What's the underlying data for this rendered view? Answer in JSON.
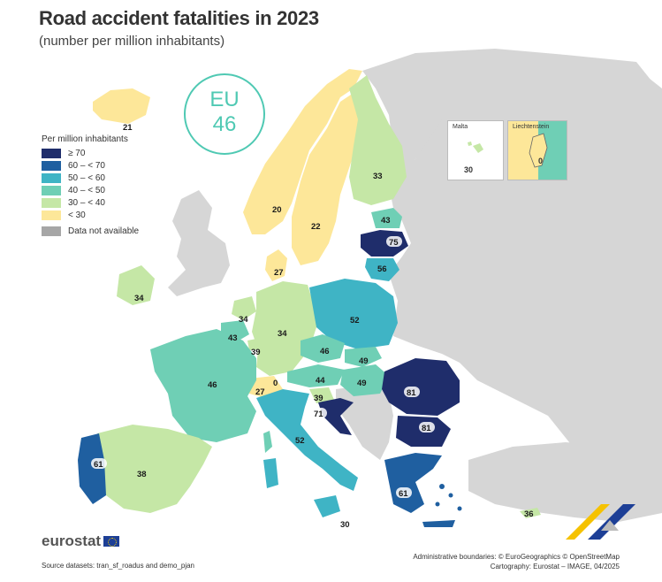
{
  "title": "Road accident fatalities in 2023",
  "subtitle": "(number per million inhabitants)",
  "eu": {
    "label": "EU",
    "value": "46"
  },
  "legend": {
    "title": "Per million inhabitants",
    "classes": [
      {
        "label": "≥ 70",
        "color": "#1f2d6b"
      },
      {
        "label": "60 – < 70",
        "color": "#1f5fa0"
      },
      {
        "label": "50 – < 60",
        "color": "#3fb4c5"
      },
      {
        "label": "40 – < 50",
        "color": "#6fcfb5"
      },
      {
        "label": "30 – < 40",
        "color": "#c5e7a6"
      },
      {
        "label": "< 30",
        "color": "#fde799"
      }
    ],
    "na": {
      "label": "Data not available",
      "color": "#a6a6a6"
    }
  },
  "map_data": {
    "values": {
      "Iceland": "21",
      "Norway": "20",
      "Sweden": "22",
      "Finland": "33",
      "Estonia": "43",
      "Latvia": "75",
      "Lithuania": "56",
      "Denmark": "27",
      "Ireland": "34",
      "Netherlands": "34",
      "Belgium": "43",
      "Luxembourg": "39",
      "Germany": "34",
      "Poland": "52",
      "Czechia": "46",
      "Slovakia": "49",
      "Austria": "44",
      "Hungary": "49",
      "Slovenia": "39",
      "Croatia": "71",
      "Switzerland": "27",
      "Liechtenstein": "0",
      "France": "46",
      "Italy": "52",
      "Spain": "38",
      "Portugal": "61",
      "Romania": "81",
      "Bulgaria": "81",
      "Greece": "61",
      "Cyprus": "36",
      "Malta": "30",
      "Malta island": "30"
    }
  },
  "insets": {
    "malta": "Malta",
    "malta_value": "30",
    "liechtenstein": "Liechtenstein",
    "liechtenstein_value": "0"
  },
  "footer": {
    "logo": "eurostat",
    "source": "Source datasets: tran_sf_roadus and demo_pjan",
    "credit1": "Administrative boundaries: © EuroGeographics © OpenStreetMap",
    "credit2": "Cartography: Eurostat – IMAGE, 04/2025"
  }
}
